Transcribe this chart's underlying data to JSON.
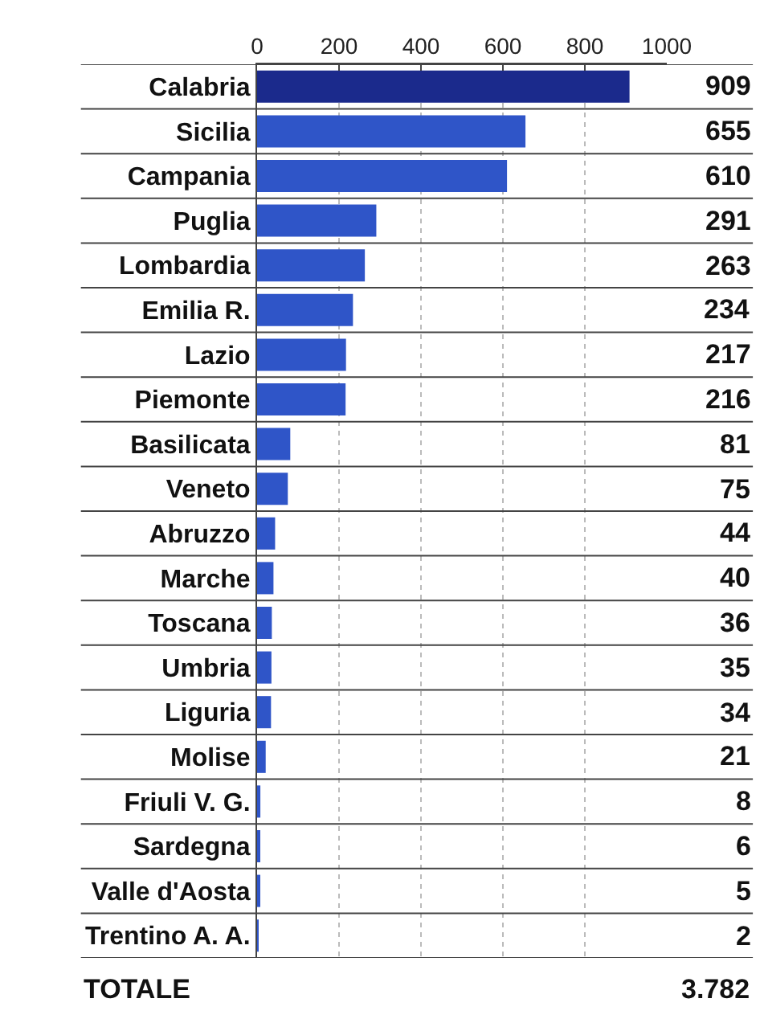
{
  "chart_data": {
    "type": "bar",
    "orientation": "horizontal",
    "categories": [
      "Calabria",
      "Sicilia",
      "Campania",
      "Puglia",
      "Lombardia",
      "Emilia R.",
      "Lazio",
      "Piemonte",
      "Basilicata",
      "Veneto",
      "Abruzzo",
      "Marche",
      "Toscana",
      "Umbria",
      "Liguria",
      "Molise",
      "Friuli V. G.",
      "Sardegna",
      "Valle d'Aosta",
      "Trentino A. A."
    ],
    "values": [
      909,
      655,
      610,
      291,
      263,
      234,
      217,
      216,
      81,
      75,
      44,
      40,
      36,
      35,
      34,
      21,
      8,
      6,
      5,
      2
    ],
    "colors": [
      "#1b2a8c",
      "#2f55c8",
      "#2f55c8",
      "#2f55c8",
      "#2f55c8",
      "#2f55c8",
      "#2f55c8",
      "#2f55c8",
      "#2f55c8",
      "#2f55c8",
      "#2f55c8",
      "#2f55c8",
      "#2f55c8",
      "#2f55c8",
      "#2f55c8",
      "#2f55c8",
      "#2f55c8",
      "#2f55c8",
      "#2f55c8",
      "#2f55c8"
    ],
    "xlim": [
      0,
      1000
    ],
    "xticks": [
      0,
      200,
      400,
      600,
      800,
      1000
    ],
    "grid": "x",
    "data_labels": true,
    "annotations": [
      "TOTALE                                             3.782"
    ]
  }
}
